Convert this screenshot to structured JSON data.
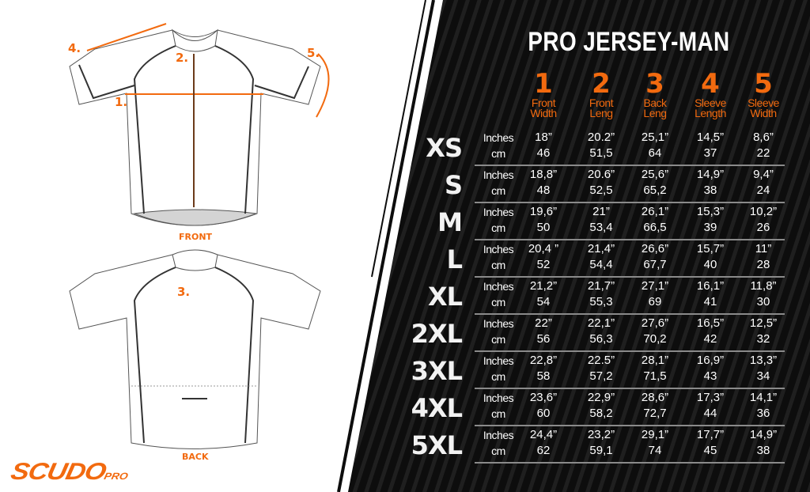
{
  "title": "PRO JERSEY-MAN",
  "colors": {
    "accent": "#f26a0f",
    "panel": "#0d0d0d"
  },
  "columns": [
    {
      "num": "1",
      "label1": "Front",
      "label2": "Width"
    },
    {
      "num": "2",
      "label1": "Front",
      "label2": "Leng"
    },
    {
      "num": "3",
      "label1": "Back",
      "label2": "Leng"
    },
    {
      "num": "4",
      "label1": "Sleeve",
      "label2": "Length"
    },
    {
      "num": "5",
      "label1": "Sleeve",
      "label2": "Width"
    }
  ],
  "units": {
    "inches": "Inches",
    "cm": "cm"
  },
  "rows": [
    {
      "size": "XS",
      "inches": [
        "18”",
        "20.2”",
        "25,1”",
        "14,5”",
        "8,6”"
      ],
      "cm": [
        "46",
        "51,5",
        "64",
        "37",
        "22"
      ]
    },
    {
      "size": "S",
      "inches": [
        "18,8”",
        "20.6”",
        "25,6”",
        "14,9”",
        "9,4”"
      ],
      "cm": [
        "48",
        "52,5",
        "65,2",
        "38",
        "24"
      ]
    },
    {
      "size": "M",
      "inches": [
        "19,6”",
        "21”",
        "26,1”",
        "15,3”",
        "10,2”"
      ],
      "cm": [
        "50",
        "53,4",
        "66,5",
        "39",
        "26"
      ]
    },
    {
      "size": "L",
      "inches": [
        "20,4 ”",
        "21,4”",
        "26,6”",
        "15,7”",
        "11”"
      ],
      "cm": [
        "52",
        "54,4",
        "67,7",
        "40",
        "28"
      ]
    },
    {
      "size": "XL",
      "inches": [
        "21,2”",
        "21,7”",
        "27,1”",
        "16,1”",
        "11,8”"
      ],
      "cm": [
        "54",
        "55,3",
        "69",
        "41",
        "30"
      ]
    },
    {
      "size": "2XL",
      "inches": [
        "22”",
        "22,1”",
        "27,6”",
        "16,5”",
        "12,5”"
      ],
      "cm": [
        "56",
        "56,3",
        "70,2",
        "42",
        "32"
      ]
    },
    {
      "size": "3XL",
      "inches": [
        "22,8”",
        "22.5”",
        "28,1”",
        "16,9”",
        "13,3”"
      ],
      "cm": [
        "58",
        "57,2",
        "71,5",
        "43",
        "34"
      ]
    },
    {
      "size": "4XL",
      "inches": [
        "23,6”",
        "22,9”",
        "28,6”",
        "17,3”",
        "14,1”"
      ],
      "cm": [
        "60",
        "58,2",
        "72,7",
        "44",
        "36"
      ]
    },
    {
      "size": "5XL",
      "inches": [
        "24,4”",
        "23,2”",
        "29,1”",
        "17,7”",
        "14,9”"
      ],
      "cm": [
        "62",
        "59,1",
        "74",
        "45",
        "38"
      ]
    }
  ],
  "diagram": {
    "front_label": "FRONT",
    "back_label": "BACK",
    "markers": [
      "1.",
      "2.",
      "3.",
      "4.",
      "5."
    ]
  },
  "logo": {
    "main": "SCUDO",
    "sub": "PRO"
  }
}
